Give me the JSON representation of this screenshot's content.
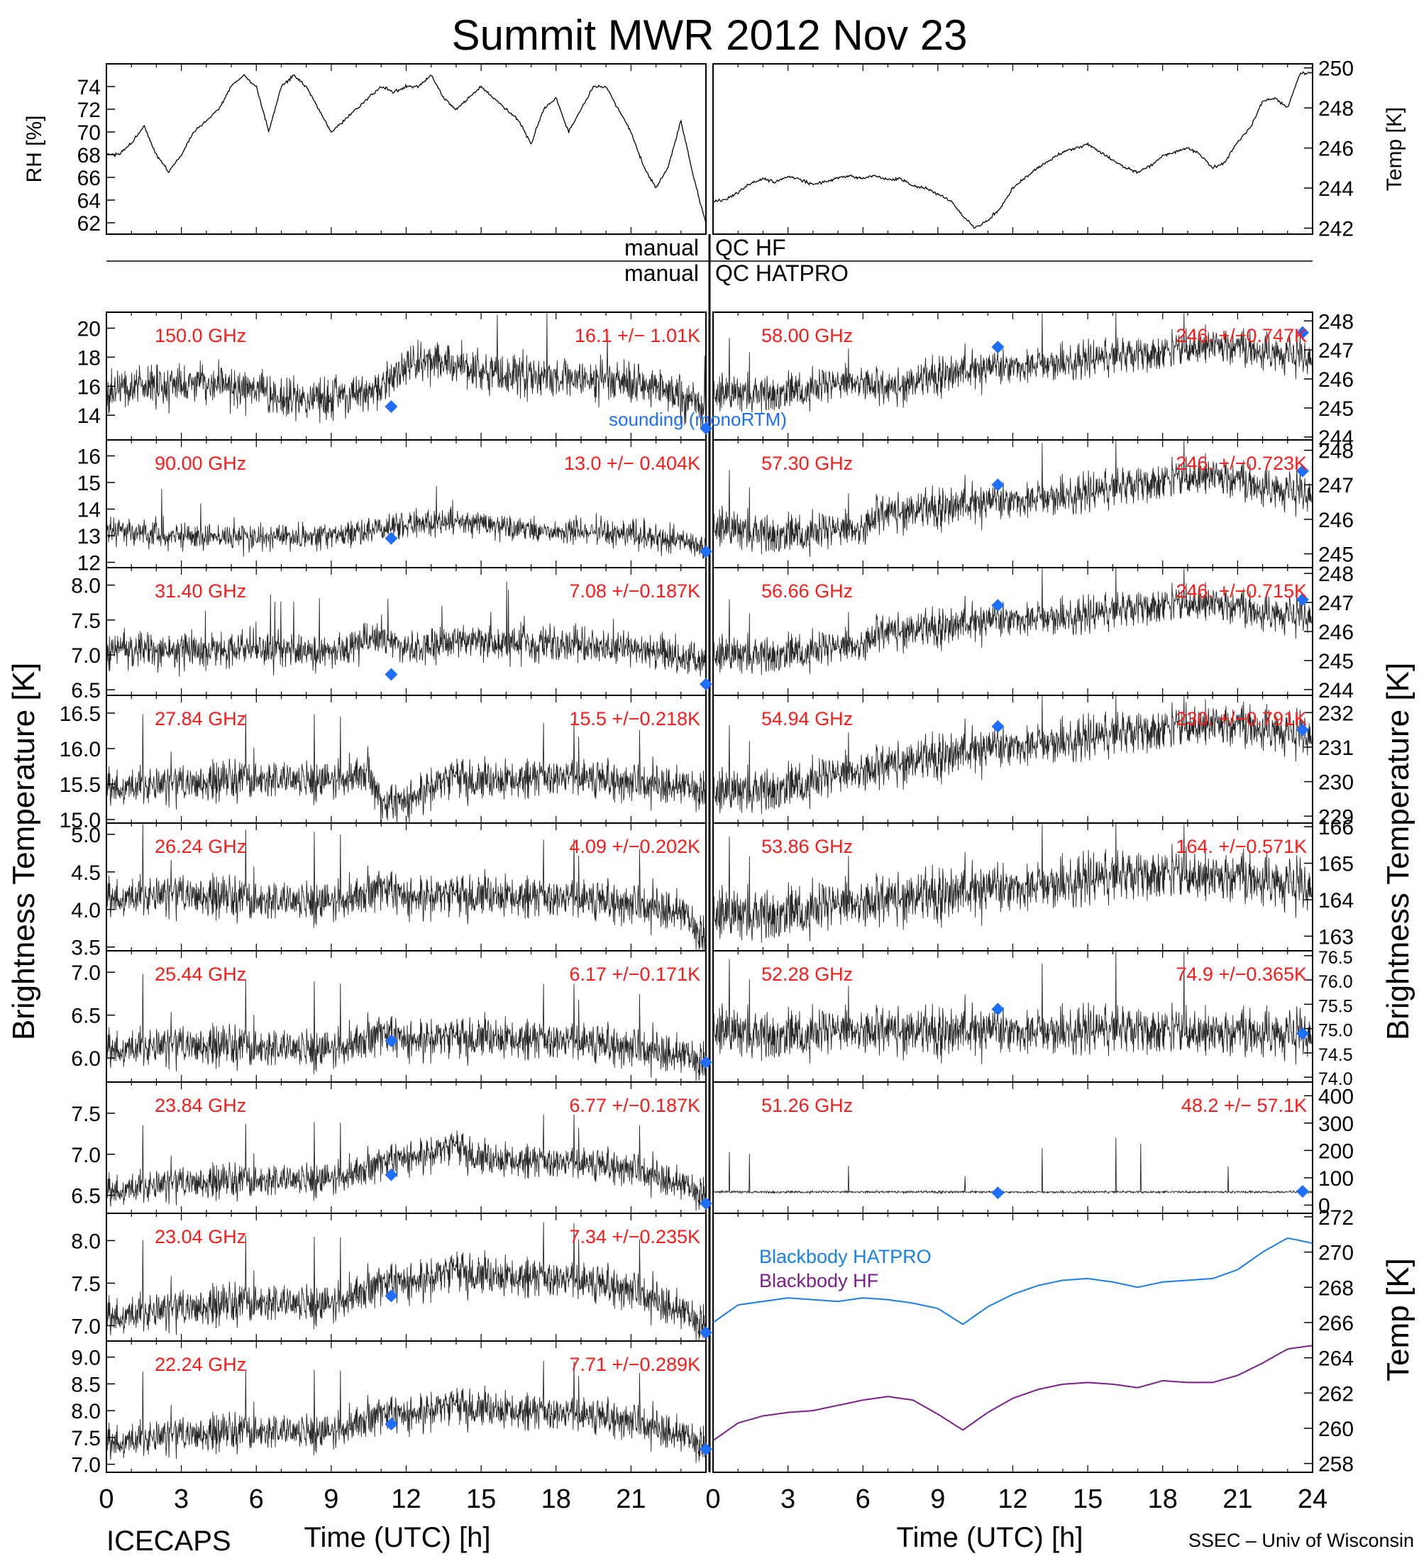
{
  "figure": {
    "title": "Summit MWR 2012 Nov 23",
    "footer_left": "ICECAPS",
    "footer_right": "SSEC – Univ of Wisconsin",
    "xlabel": "Time (UTC) [h]",
    "xticks": [
      "0",
      "3",
      "6",
      "9",
      "12",
      "15",
      "18",
      "21",
      "24"
    ],
    "left_ylabel": "Brightness Temperature [K]",
    "right_ylabel": "Brightness Temperature [K]",
    "right_bottom_ylabel": "Temp [K]",
    "qc_labels": {
      "hf_left": "manual",
      "hf_right": "QC HF",
      "hatpro_left": "manual",
      "hatpro_right": "QC HATPRO"
    },
    "sounding_label": "sounding (monoRTM)",
    "colors": {
      "trace": "#000000",
      "label": "#ff1a1a",
      "sounding": "#1e6fff",
      "bb_hatpro": "#1a7fe6",
      "bb_hf": "#7a1f8c"
    }
  },
  "chart_data": [
    {
      "id": "rh",
      "type": "line",
      "side": "left",
      "ylabel": "RH [%]",
      "ylim": [
        61,
        76
      ],
      "yticks": [
        "62",
        "64",
        "66",
        "68",
        "70",
        "72",
        "74"
      ],
      "x": [
        0,
        0.5,
        1,
        1.5,
        2,
        2.5,
        3,
        3.5,
        4,
        4.5,
        5,
        5.5,
        6,
        6.5,
        7,
        7.5,
        8,
        8.5,
        9,
        9.5,
        10,
        10.5,
        11,
        11.5,
        12,
        12.5,
        13,
        13.5,
        14,
        14.5,
        15,
        15.5,
        16,
        16.5,
        17,
        17.5,
        18,
        18.5,
        19,
        19.5,
        20,
        20.5,
        21,
        21.5,
        22,
        22.5,
        23,
        23.5,
        24
      ],
      "y": [
        68,
        68,
        69,
        70.5,
        68,
        66.5,
        68,
        70,
        71,
        72,
        74,
        75,
        74,
        70,
        74,
        75,
        74,
        72,
        70,
        71,
        72,
        73,
        74,
        73.5,
        74,
        74,
        75,
        73,
        72,
        73,
        74,
        73,
        72,
        71,
        69,
        72,
        73,
        70,
        72,
        74,
        74,
        72,
        70,
        67,
        65,
        67,
        71,
        66,
        62
      ]
    },
    {
      "id": "temp",
      "type": "line",
      "side": "right",
      "ylabel": "Temp [K]",
      "ylim": [
        241.7,
        250.2
      ],
      "yticks": [
        "242",
        "244",
        "246",
        "248",
        "250"
      ],
      "x": [
        0,
        0.5,
        1,
        1.5,
        2,
        2.5,
        3,
        3.5,
        4,
        4.5,
        5,
        5.5,
        6,
        6.5,
        7,
        7.5,
        8,
        8.5,
        9,
        9.5,
        10,
        10.5,
        11,
        11.5,
        12,
        12.5,
        13,
        13.5,
        14,
        14.5,
        15,
        15.5,
        16,
        16.5,
        17,
        17.5,
        18,
        18.5,
        19,
        19.5,
        20,
        20.5,
        21,
        21.5,
        22,
        22.5,
        23,
        23.5,
        24
      ],
      "y": [
        243.3,
        243.4,
        243.8,
        244.2,
        244.5,
        244.3,
        244.6,
        244.4,
        244.2,
        244.3,
        244.5,
        244.6,
        244.5,
        244.6,
        244.4,
        244.5,
        244.1,
        244,
        243.7,
        243.4,
        242.6,
        242,
        242.4,
        243,
        244,
        244.5,
        245,
        245.4,
        245.8,
        246,
        246.2,
        245.8,
        245.4,
        245,
        244.8,
        245.1,
        245.6,
        245.8,
        246,
        245.7,
        245,
        245.3,
        246.3,
        247,
        248.3,
        248.5,
        248,
        249.7,
        249.8
      ]
    },
    {
      "id": "ch150",
      "type": "scatter",
      "side": "left",
      "freq": "150.0 GHz",
      "stat": "16.1 +/− 1.01K",
      "ylim": [
        12.3,
        21.1
      ],
      "yticks": [
        "14",
        "16",
        "18",
        "20"
      ],
      "noise": 1.0,
      "x": [
        0,
        2,
        4,
        6,
        8,
        10,
        11,
        12,
        13,
        14,
        15,
        16,
        18,
        20,
        22,
        24
      ],
      "y": [
        15.5,
        16,
        16.2,
        15.8,
        15,
        15.5,
        16,
        17.5,
        17.8,
        17.5,
        17,
        16.8,
        16.5,
        16.4,
        16,
        14.5
      ],
      "sounding": [
        [
          11.4,
          14.6
        ],
        [
          24,
          13.1
        ]
      ]
    },
    {
      "id": "ch90",
      "type": "scatter",
      "side": "left",
      "freq": "90.00 GHz",
      "stat": "13.0 +/− 0.404K",
      "ylim": [
        11.8,
        16.6
      ],
      "yticks": [
        "12",
        "13",
        "14",
        "15",
        "16"
      ],
      "noise": 0.35,
      "x": [
        0,
        3,
        6,
        9,
        11,
        12,
        13,
        14,
        15,
        18,
        21,
        24
      ],
      "y": [
        13.2,
        13,
        12.9,
        13,
        13.3,
        13.4,
        13.5,
        13.6,
        13.4,
        13.2,
        13.1,
        12.6
      ],
      "sounding": [
        [
          11.4,
          12.9
        ],
        [
          24,
          12.4
        ]
      ]
    },
    {
      "id": "ch3140",
      "type": "scatter",
      "side": "left",
      "freq": "31.40 GHz",
      "stat": "7.08 +/−0.187K",
      "ylim": [
        6.42,
        8.25
      ],
      "yticks": [
        "6.5",
        "7.0",
        "7.5",
        "8.0"
      ],
      "noise": 0.18,
      "x": [
        0,
        3,
        6,
        9,
        11,
        12,
        14,
        15,
        18,
        21,
        24
      ],
      "y": [
        7.05,
        7.05,
        7.1,
        7.05,
        7.25,
        7.1,
        7.2,
        7.2,
        7.15,
        7.1,
        6.95
      ],
      "sounding": [
        [
          11.4,
          6.72
        ],
        [
          24,
          6.58
        ]
      ]
    },
    {
      "id": "ch2784",
      "type": "scatter",
      "side": "left",
      "freq": "27.84 GHz",
      "stat": "15.5 +/−0.218K",
      "ylim": [
        14.95,
        16.75
      ],
      "yticks": [
        "15.0",
        "15.5",
        "16.0",
        "16.5"
      ],
      "noise": 0.2,
      "x": [
        0,
        3,
        6,
        9,
        10.5,
        11,
        12,
        13,
        14,
        15,
        18,
        21,
        24
      ],
      "y": [
        15.45,
        15.5,
        15.6,
        15.55,
        15.7,
        15.2,
        15.25,
        15.45,
        15.6,
        15.55,
        15.6,
        15.55,
        15.4
      ],
      "sounding": []
    },
    {
      "id": "ch2624",
      "type": "scatter",
      "side": "left",
      "freq": "26.24 GHz",
      "stat": "4.09 +/−0.202K",
      "ylim": [
        3.45,
        5.15
      ],
      "yticks": [
        "3.5",
        "4.0",
        "4.5",
        "5.0"
      ],
      "noise": 0.2,
      "x": [
        0,
        3,
        6,
        9,
        11,
        12,
        15,
        18,
        21,
        23,
        24
      ],
      "y": [
        4.15,
        4.2,
        4.15,
        4.1,
        4.3,
        4.15,
        4.2,
        4.15,
        4.1,
        3.95,
        3.6
      ],
      "sounding": []
    },
    {
      "id": "ch2544",
      "type": "scatter",
      "side": "left",
      "freq": "25.44 GHz",
      "stat": "6.17 +/−0.171K",
      "ylim": [
        5.72,
        7.25
      ],
      "yticks": [
        "6.0",
        "6.5",
        "7.0"
      ],
      "noise": 0.17,
      "x": [
        0,
        3,
        6,
        9,
        11,
        12,
        15,
        18,
        21,
        24
      ],
      "y": [
        6.1,
        6.15,
        6.15,
        6.1,
        6.3,
        6.2,
        6.25,
        6.2,
        6.15,
        5.95
      ],
      "sounding": [
        [
          11.4,
          6.2
        ],
        [
          24,
          5.95
        ]
      ]
    },
    {
      "id": "ch2384",
      "type": "scatter",
      "side": "left",
      "freq": "23.84 GHz",
      "stat": "6.77 +/−0.187K",
      "ylim": [
        6.28,
        7.88
      ],
      "yticks": [
        "6.5",
        "7.0",
        "7.5"
      ],
      "noise": 0.15,
      "x": [
        0,
        3,
        6,
        9,
        10,
        11,
        12,
        13,
        14,
        15,
        18,
        21,
        24
      ],
      "y": [
        6.55,
        6.65,
        6.7,
        6.7,
        6.8,
        6.9,
        6.95,
        7,
        7.1,
        6.95,
        6.9,
        6.85,
        6.5
      ],
      "sounding": [
        [
          11.4,
          6.75
        ],
        [
          24,
          6.4
        ]
      ]
    },
    {
      "id": "ch2304",
      "type": "scatter",
      "side": "left",
      "freq": "23.04 GHz",
      "stat": "7.34 +/−0.235K",
      "ylim": [
        6.82,
        8.32
      ],
      "yticks": [
        "7.0",
        "7.5",
        "8.0"
      ],
      "noise": 0.17,
      "x": [
        0,
        3,
        6,
        9,
        10,
        11,
        12,
        13,
        14,
        15,
        18,
        21,
        24
      ],
      "y": [
        7.1,
        7.2,
        7.3,
        7.25,
        7.4,
        7.5,
        7.5,
        7.55,
        7.65,
        7.6,
        7.55,
        7.45,
        7.0
      ],
      "sounding": [
        [
          11.4,
          7.35
        ],
        [
          24,
          6.92
        ]
      ]
    },
    {
      "id": "ch2224",
      "type": "scatter",
      "side": "left",
      "freq": "22.24 GHz",
      "stat": "7.71 +/−0.289K",
      "ylim": [
        6.85,
        9.3
      ],
      "yticks": [
        "7.0",
        "7.5",
        "8.0",
        "8.5",
        "9.0"
      ],
      "noise": 0.25,
      "x": [
        0,
        3,
        6,
        9,
        10,
        11,
        12,
        13,
        14,
        15,
        18,
        21,
        24
      ],
      "y": [
        7.4,
        7.55,
        7.65,
        7.6,
        7.8,
        7.95,
        7.9,
        8.0,
        8.1,
        8.05,
        7.95,
        7.85,
        7.35
      ],
      "sounding": [
        [
          11.4,
          7.75
        ],
        [
          24,
          7.28
        ]
      ]
    },
    {
      "id": "ch5800",
      "type": "scatter",
      "side": "right",
      "freq": "58.00 GHz",
      "stat": "246. +/−0.747K",
      "ylim": [
        243.9,
        248.3
      ],
      "yticks": [
        "244",
        "245",
        "246",
        "247",
        "248"
      ],
      "noise": 0.45,
      "x": [
        0,
        3,
        6,
        7,
        9,
        12,
        15,
        18,
        20,
        22,
        24
      ],
      "y": [
        245.4,
        245.6,
        245.9,
        245.6,
        246.1,
        246.5,
        246.7,
        246.9,
        247.2,
        246.9,
        246.7
      ],
      "sounding": [
        [
          11.4,
          247.1
        ],
        [
          23.6,
          247.6
        ]
      ]
    },
    {
      "id": "ch5730",
      "type": "scatter",
      "side": "right",
      "freq": "57.30 GHz",
      "stat": "246. +/−0.723K",
      "ylim": [
        244.6,
        248.3
      ],
      "yticks": [
        "245",
        "246",
        "247",
        "248"
      ],
      "noise": 0.4,
      "x": [
        0,
        3,
        6,
        6.5,
        9,
        12,
        15,
        18,
        20,
        22,
        24
      ],
      "y": [
        245.7,
        245.6,
        245.7,
        246.1,
        246.3,
        246.6,
        246.8,
        247.1,
        247.3,
        246.9,
        246.7
      ],
      "sounding": [
        [
          11.4,
          247
        ],
        [
          23.6,
          247.4
        ]
      ]
    },
    {
      "id": "ch5666",
      "type": "scatter",
      "side": "right",
      "freq": "56.66 GHz",
      "stat": "246. +/−0.715K",
      "ylim": [
        243.8,
        248.2
      ],
      "yticks": [
        "244",
        "245",
        "246",
        "247",
        "248"
      ],
      "noise": 0.45,
      "x": [
        0,
        3,
        6,
        6.5,
        9,
        12,
        15,
        18,
        20,
        22,
        24
      ],
      "y": [
        245.1,
        245.3,
        245.5,
        245.9,
        246.1,
        246.5,
        246.6,
        246.9,
        247,
        246.6,
        246.5
      ],
      "sounding": [
        [
          11.4,
          246.9
        ],
        [
          23.6,
          247.1
        ]
      ]
    },
    {
      "id": "ch5494",
      "type": "scatter",
      "side": "right",
      "freq": "54.94 GHz",
      "stat": "230. +/−0.791K",
      "ylim": [
        228.8,
        232.5
      ],
      "yticks": [
        "229",
        "230",
        "231",
        "232"
      ],
      "noise": 0.45,
      "x": [
        0,
        3,
        6,
        9,
        12,
        15,
        18,
        20,
        22,
        24
      ],
      "y": [
        229.6,
        229.9,
        230.3,
        230.7,
        231.1,
        231.3,
        231.5,
        231.7,
        231.5,
        231.3
      ],
      "sounding": [
        [
          11.4,
          231.6
        ],
        [
          23.6,
          231.5
        ]
      ]
    },
    {
      "id": "ch5386",
      "type": "scatter",
      "side": "right",
      "freq": "53.86 GHz",
      "stat": "164. +/−0.571K",
      "ylim": [
        162.6,
        166.1
      ],
      "yticks": [
        "163",
        "164",
        "165",
        "166"
      ],
      "noise": 0.5,
      "x": [
        0,
        3,
        6,
        9,
        12,
        15,
        18,
        21,
        24
      ],
      "y": [
        163.5,
        163.7,
        163.9,
        164.1,
        164.4,
        164.6,
        164.7,
        164.6,
        164.3
      ],
      "sounding": []
    },
    {
      "id": "ch5228",
      "type": "scatter",
      "side": "right",
      "freq": "52.28 GHz",
      "stat": "74.9 +/−0.365K",
      "ylim": [
        73.9,
        76.6
      ],
      "yticks": [
        "74.0",
        "74.5",
        "75.0",
        "75.5",
        "76.0",
        "76.5"
      ],
      "noise": 0.35,
      "x": [
        0,
        3,
        6,
        9,
        12,
        15,
        18,
        21,
        24
      ],
      "y": [
        74.9,
        74.9,
        74.95,
        74.9,
        75,
        75,
        74.95,
        74.9,
        74.85
      ],
      "sounding": [
        [
          11.4,
          75.4
        ],
        [
          23.6,
          74.9
        ]
      ]
    },
    {
      "id": "ch5126",
      "type": "scatter",
      "side": "right",
      "freq": "51.26 GHz",
      "stat": "48.2 +/− 57.1K",
      "ylim": [
        -30,
        450
      ],
      "yticks": [
        "0",
        "100",
        "200",
        "300",
        "400"
      ],
      "noise": 3,
      "spikes": true,
      "x": [
        0,
        6,
        12,
        18,
        24
      ],
      "y": [
        48,
        48,
        48,
        48,
        48
      ],
      "sounding": [
        [
          11.4,
          45
        ],
        [
          23.6,
          50
        ]
      ]
    },
    {
      "id": "blackbody",
      "type": "line",
      "side": "right",
      "ylim": [
        257.5,
        272.2
      ],
      "yticks": [
        "258",
        "260",
        "262",
        "264",
        "266",
        "268",
        "270",
        "272"
      ],
      "series": [
        {
          "name": "Blackbody HATPRO",
          "color": "#1a7fe6",
          "x": [
            0,
            1,
            2,
            3,
            4,
            5,
            6,
            7,
            8,
            9,
            10,
            11,
            12,
            13,
            14,
            15,
            16,
            17,
            18,
            19,
            20,
            21,
            22,
            23,
            24
          ],
          "y": [
            266,
            267,
            267.2,
            267.4,
            267.3,
            267.2,
            267.4,
            267.3,
            267.1,
            266.8,
            265.9,
            266.9,
            267.6,
            268.1,
            268.4,
            268.5,
            268.3,
            268,
            268.3,
            268.4,
            268.5,
            269,
            270,
            270.8,
            270.5
          ]
        },
        {
          "name": "Blackbody HF",
          "color": "#7a1f8c",
          "x": [
            0,
            1,
            2,
            3,
            4,
            5,
            6,
            7,
            8,
            9,
            10,
            11,
            12,
            13,
            14,
            15,
            16,
            17,
            18,
            19,
            20,
            21,
            22,
            23,
            24
          ],
          "y": [
            259.3,
            260.3,
            260.7,
            260.9,
            261,
            261.3,
            261.6,
            261.8,
            261.6,
            260.8,
            259.9,
            260.9,
            261.7,
            262.2,
            262.5,
            262.6,
            262.5,
            262.3,
            262.7,
            262.6,
            262.6,
            263,
            263.7,
            264.5,
            264.7
          ]
        }
      ]
    }
  ]
}
